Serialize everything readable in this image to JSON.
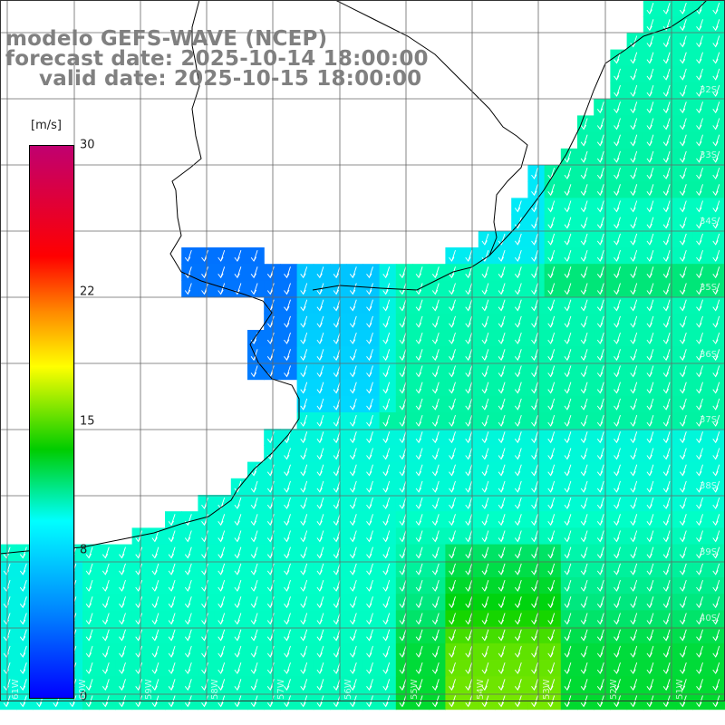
{
  "title_line1": "modelo GEFS-WAVE (NCEP)",
  "title_line2": "forecast date: 2025-10-14 18:00:00",
  "title_line3": "valid date: 2025-10-15 18:00:00",
  "colorbar": {
    "unit": "[m/s]",
    "ticks": [
      "30",
      "22",
      "15",
      "8",
      "0"
    ],
    "tick_values": [
      30,
      22,
      15,
      8,
      0
    ]
  },
  "lat_labels": [
    "32S",
    "33S",
    "34S",
    "35S",
    "36S",
    "37S",
    "38S",
    "39S",
    "40S"
  ],
  "lon_labels": [
    "61W",
    "60W",
    "59W",
    "58W",
    "57W",
    "56W",
    "55W",
    "54W",
    "53W",
    "52W",
    "51W"
  ],
  "colors": {
    "land": "#ffffff",
    "grid": "#666666",
    "coast": "#000000",
    "arrows": "#ffffff",
    "bg_ocean": "#33eeff"
  }
}
